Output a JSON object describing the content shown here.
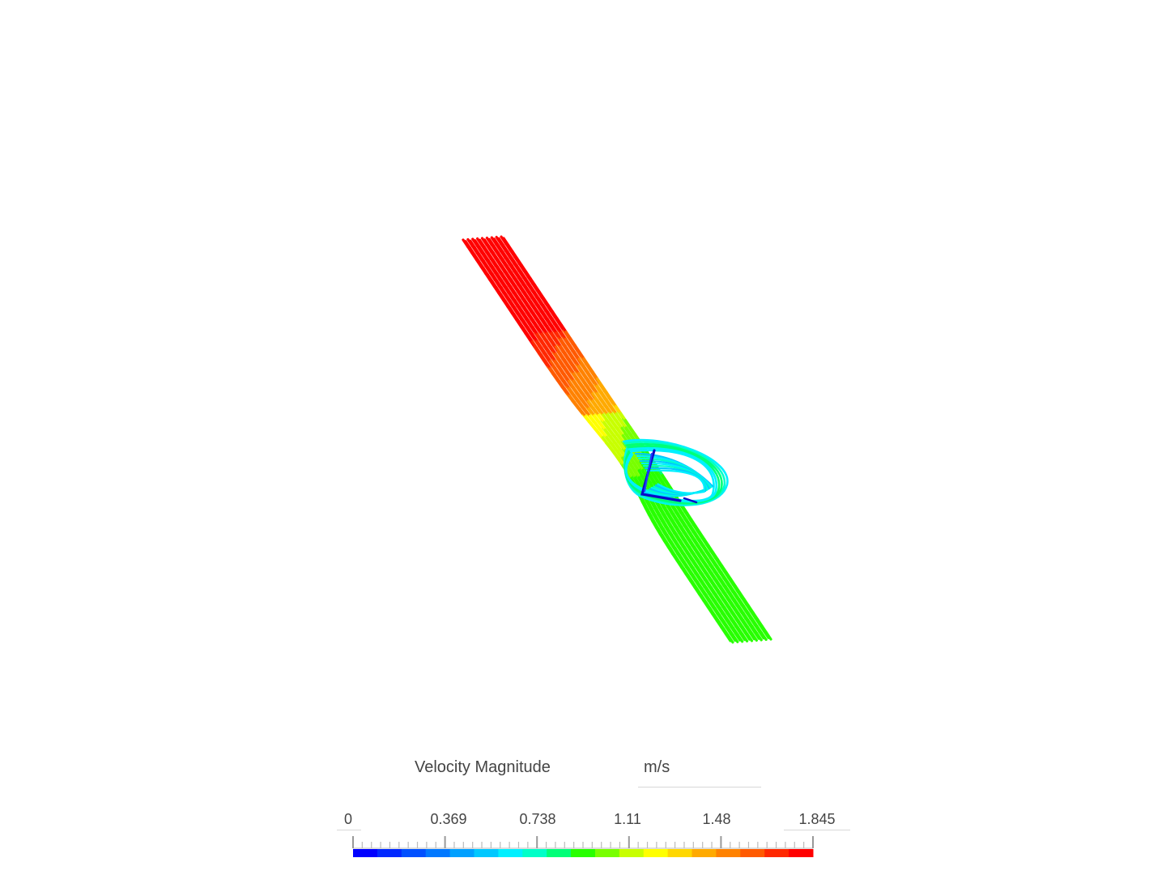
{
  "legend": {
    "title": "Velocity Magnitude",
    "unit": "m/s",
    "ticks": [
      "0",
      "0.369",
      "0.738",
      "1.11",
      "1.48",
      "1.845"
    ],
    "min": 0,
    "max": 1.845
  },
  "colormap": [
    "#0000ff",
    "#0028ff",
    "#0050ff",
    "#0078ff",
    "#00a0ff",
    "#00c8ff",
    "#00f0ff",
    "#00ffc8",
    "#00ff78",
    "#28ff00",
    "#78ff00",
    "#c8ff00",
    "#ffff00",
    "#ffd700",
    "#ffaa00",
    "#ff8200",
    "#ff5a00",
    "#ff2800",
    "#ff0000"
  ]
}
